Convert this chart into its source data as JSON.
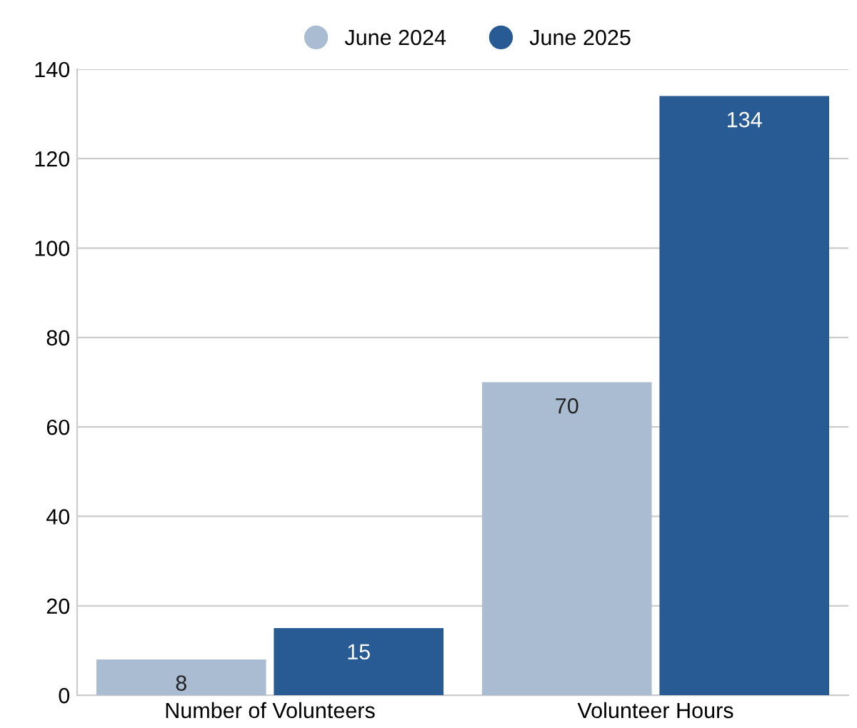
{
  "chart_data": {
    "type": "bar",
    "categories": [
      "Number of Volunteers",
      "Volunteer Hours"
    ],
    "series": [
      {
        "name": "June 2024",
        "color": "#a9bcd1",
        "values": [
          8,
          70
        ]
      },
      {
        "name": "June 2025",
        "color": "#285b93",
        "values": [
          15,
          134
        ]
      }
    ],
    "ylim": [
      0,
      140
    ],
    "yticks": [
      0,
      20,
      40,
      60,
      80,
      100,
      120,
      140
    ],
    "grid": "y",
    "legend": "top",
    "data_labels": true
  }
}
